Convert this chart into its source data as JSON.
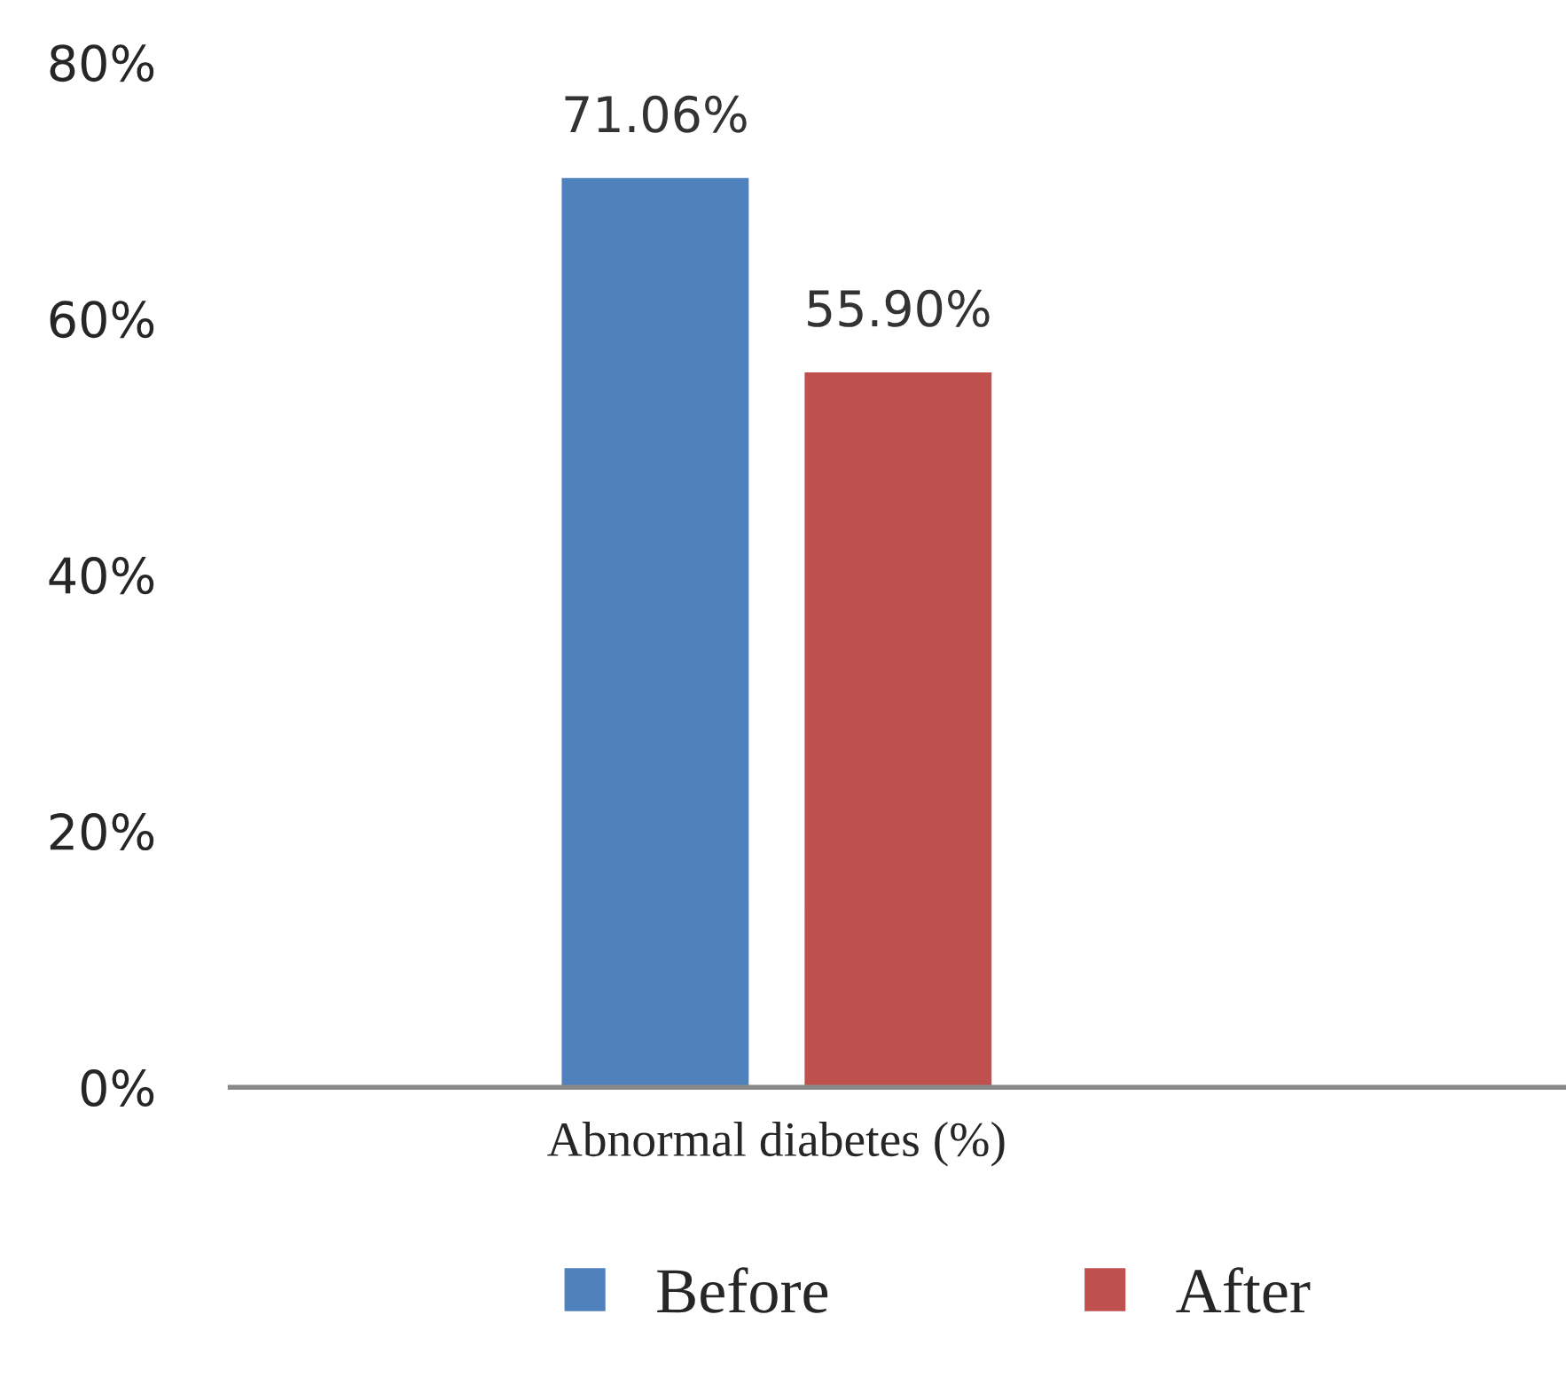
{
  "chart_data": {
    "type": "bar",
    "categories": [
      "Abnormal diabetes (%)"
    ],
    "series": [
      {
        "name": "Before",
        "color": "#4f81bd",
        "values": [
          71.06
        ],
        "value_labels": [
          "71.06%"
        ]
      },
      {
        "name": "After",
        "color": "#c0504d",
        "values": [
          55.9
        ],
        "value_labels": [
          "55.90%"
        ]
      }
    ],
    "ylim": [
      0,
      80
    ],
    "yticks": [
      {
        "value": 0,
        "label": "0%"
      },
      {
        "value": 20,
        "label": "20%"
      },
      {
        "value": 40,
        "label": "40%"
      },
      {
        "value": 60,
        "label": "60%"
      },
      {
        "value": 80,
        "label": "80%"
      }
    ],
    "grid": false,
    "legend": "bottom"
  }
}
